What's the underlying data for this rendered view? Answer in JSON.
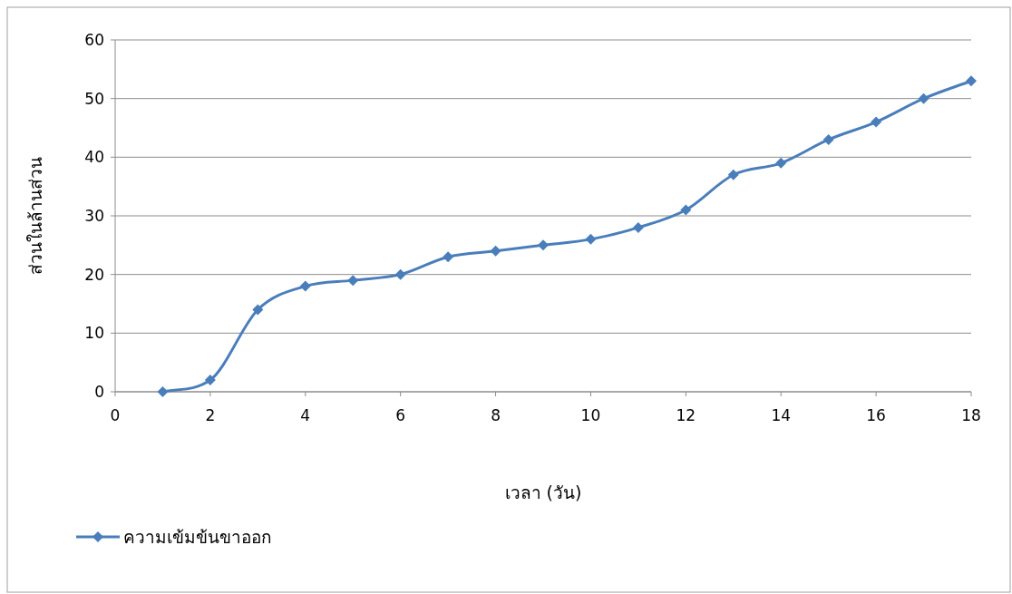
{
  "chart_data": {
    "type": "line",
    "xlabel": "เวลา (วัน)",
    "ylabel": "ส่วนในล้านส่วน",
    "x": [
      1,
      2,
      3,
      4,
      5,
      6,
      7,
      8,
      9,
      10,
      11,
      12,
      13,
      14,
      15,
      16,
      17,
      18
    ],
    "series": [
      {
        "name": "ความเข้มข้นขาออก",
        "color": "#4a7ebb",
        "values": [
          0,
          2,
          14,
          18,
          19,
          20,
          23,
          24,
          25,
          26,
          28,
          31,
          37,
          39,
          43,
          46,
          50,
          53
        ]
      }
    ],
    "xlim": [
      0,
      18
    ],
    "ylim": [
      0,
      60
    ],
    "xticks": [
      0,
      2,
      4,
      6,
      8,
      10,
      12,
      14,
      16,
      18
    ],
    "yticks": [
      0,
      10,
      20,
      30,
      40,
      50,
      60
    ],
    "grid": "y",
    "legend": "bottom left",
    "marker": "diamond",
    "line_style": "solid"
  }
}
